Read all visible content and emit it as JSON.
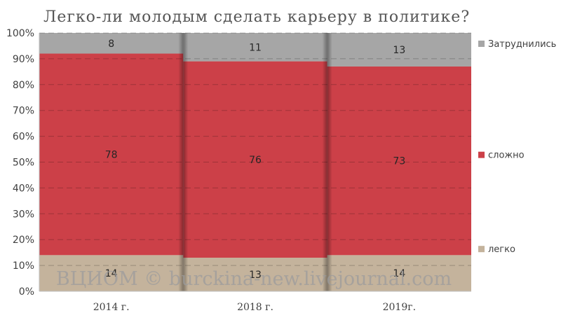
{
  "chart_data": {
    "type": "bar",
    "stacked": true,
    "percent_stacked": true,
    "title": "Легко-ли молодым сделать карьеру в политике?",
    "categories": [
      "2014 г.",
      "2018 г.",
      "2019г."
    ],
    "series": [
      {
        "name": "легко",
        "values": [
          14,
          13,
          14
        ],
        "color": "#c4b39c"
      },
      {
        "name": "сложно",
        "values": [
          78,
          76,
          73
        ],
        "color": "#cc4048"
      },
      {
        "name": "Затруднились",
        "values": [
          8,
          11,
          13
        ],
        "color": "#a6a6a6"
      }
    ],
    "ylim": [
      0,
      100
    ],
    "yticks": [
      "0%",
      "10%",
      "20%",
      "30%",
      "40%",
      "50%",
      "60%",
      "70%",
      "80%",
      "90%",
      "100%"
    ],
    "grid": true,
    "legend_position": "right"
  },
  "watermark": "ВЦИОМ © burckina-new.livejournal.com"
}
